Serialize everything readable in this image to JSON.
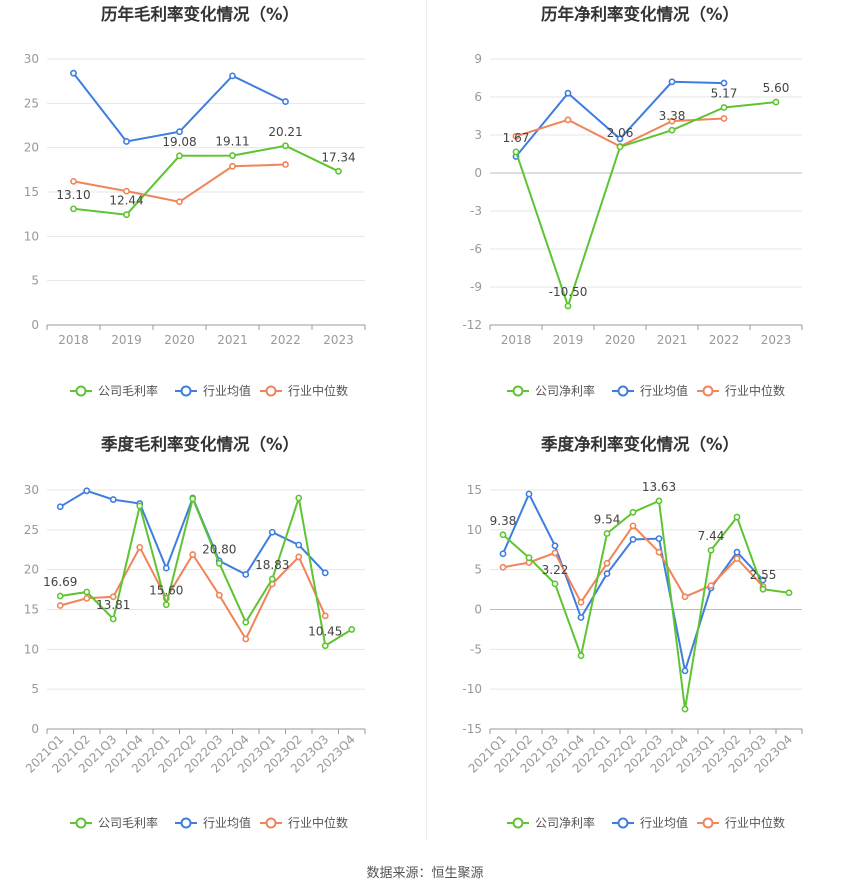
{
  "colors": {
    "company": "#5ec432",
    "industry_avg": "#3f7ee0",
    "industry_median": "#f0845a"
  },
  "legend": {
    "gross": [
      "公司毛利率",
      "行业均值",
      "行业中位数"
    ],
    "net": [
      "公司净利率",
      "行业均值",
      "行业中位数"
    ]
  },
  "footer": {
    "source": "数据来源：恒生聚源"
  },
  "chart_data": [
    {
      "id": "annual-gross",
      "type": "line",
      "title": "历年毛利率变化情况（%）",
      "categories": [
        "2018",
        "2019",
        "2020",
        "2021",
        "2022",
        "2023"
      ],
      "ylim": [
        0,
        30
      ],
      "yticks": [
        0,
        5,
        10,
        15,
        20,
        25,
        30
      ],
      "legend_key": "gross",
      "series": [
        {
          "name": "公司毛利率",
          "values": [
            13.1,
            12.44,
            19.08,
            19.11,
            20.21,
            17.34
          ],
          "labels": [
            "13.10",
            "12.44",
            "19.08",
            "19.11",
            "20.21",
            "17.34"
          ]
        },
        {
          "name": "行业均值",
          "values": [
            28.4,
            20.7,
            21.8,
            28.1,
            25.2,
            null
          ]
        },
        {
          "name": "行业中位数",
          "values": [
            16.2,
            15.1,
            13.9,
            17.9,
            18.1,
            null
          ]
        }
      ]
    },
    {
      "id": "annual-net",
      "type": "line",
      "title": "历年净利率变化情况（%）",
      "categories": [
        "2018",
        "2019",
        "2020",
        "2021",
        "2022",
        "2023"
      ],
      "ylim": [
        -12,
        9
      ],
      "yticks": [
        -12,
        -9,
        -6,
        -3,
        0,
        3,
        6,
        9
      ],
      "legend_key": "net",
      "series": [
        {
          "name": "公司净利率",
          "values": [
            1.67,
            -10.5,
            2.06,
            3.38,
            5.17,
            5.6
          ],
          "labels": [
            "1.67",
            "-10.50",
            "2.06",
            "3.38",
            "5.17",
            "5.60"
          ]
        },
        {
          "name": "行业均值",
          "values": [
            1.3,
            6.3,
            2.7,
            7.2,
            7.1,
            null
          ]
        },
        {
          "name": "行业中位数",
          "values": [
            2.9,
            4.2,
            2.1,
            4.1,
            4.3,
            null
          ]
        }
      ]
    },
    {
      "id": "quarterly-gross",
      "type": "line",
      "title": "季度毛利率变化情况（%）",
      "categories": [
        "2021Q1",
        "2021Q2",
        "2021Q3",
        "2021Q4",
        "2022Q1",
        "2022Q2",
        "2022Q3",
        "2022Q4",
        "2023Q1",
        "2023Q2",
        "2023Q3",
        "2023Q4"
      ],
      "ylim": [
        0,
        30
      ],
      "yticks": [
        0,
        5,
        10,
        15,
        20,
        25,
        30
      ],
      "rotate_x": true,
      "legend_key": "gross",
      "series": [
        {
          "name": "公司毛利率",
          "values": [
            16.69,
            17.2,
            13.81,
            28.0,
            15.6,
            28.9,
            20.8,
            13.4,
            18.83,
            29.0,
            10.45,
            12.5
          ],
          "labels": [
            "16.69",
            null,
            "13.81",
            null,
            "15.60",
            null,
            "20.80",
            null,
            "18.83",
            null,
            "10.45",
            null
          ]
        },
        {
          "name": "行业均值",
          "values": [
            27.9,
            29.9,
            28.8,
            28.3,
            20.2,
            29.0,
            21.1,
            19.4,
            24.7,
            23.1,
            19.6,
            null
          ]
        },
        {
          "name": "行业中位数",
          "values": [
            15.5,
            16.4,
            16.6,
            22.8,
            16.4,
            21.9,
            16.8,
            11.3,
            18.2,
            21.6,
            14.2,
            null
          ]
        }
      ]
    },
    {
      "id": "quarterly-net",
      "type": "line",
      "title": "季度净利率变化情况（%）",
      "categories": [
        "2021Q1",
        "2021Q2",
        "2021Q3",
        "2021Q4",
        "2022Q1",
        "2022Q2",
        "2022Q3",
        "2022Q4",
        "2023Q1",
        "2023Q2",
        "2023Q3",
        "2023Q4"
      ],
      "ylim": [
        -15,
        15
      ],
      "yticks": [
        -15,
        -10,
        -5,
        0,
        5,
        10,
        15
      ],
      "rotate_x": true,
      "legend_key": "net",
      "series": [
        {
          "name": "公司净利率",
          "values": [
            9.38,
            6.5,
            3.22,
            -5.8,
            9.54,
            12.2,
            13.63,
            -12.5,
            7.44,
            11.6,
            2.55,
            2.1
          ],
          "labels": [
            "9.38",
            null,
            "3.22",
            null,
            "9.54",
            null,
            "13.63",
            null,
            "7.44",
            null,
            "2.55",
            null
          ]
        },
        {
          "name": "行业均值",
          "values": [
            7.0,
            14.5,
            8.0,
            -1.0,
            4.5,
            8.8,
            8.9,
            -7.7,
            2.7,
            7.2,
            3.7,
            null
          ]
        },
        {
          "name": "行业中位数",
          "values": [
            5.3,
            5.9,
            7.1,
            0.9,
            5.8,
            10.5,
            7.2,
            1.6,
            3.0,
            6.4,
            2.9,
            null
          ]
        }
      ]
    }
  ]
}
